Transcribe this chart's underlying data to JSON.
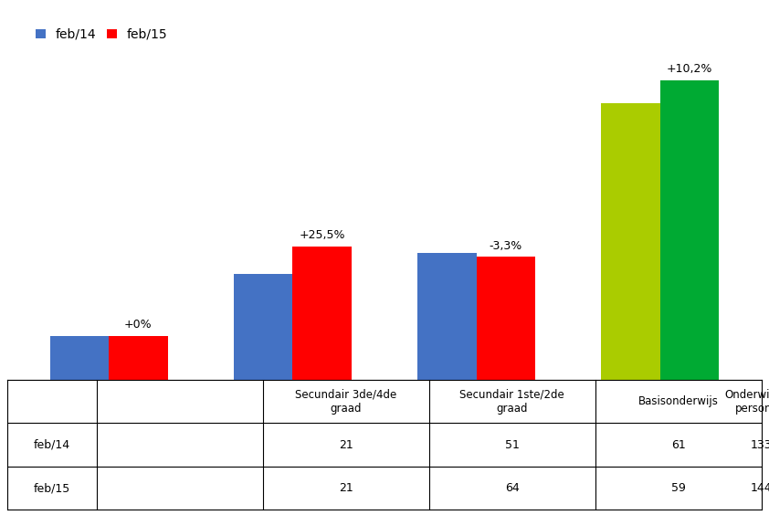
{
  "categories": [
    "Secundair 3de/4de\ngraad",
    "Secundair 1ste/2de\ngraad",
    "Basisonderwijs",
    "Onderwijzend\npersoneel"
  ],
  "feb14_values": [
    21,
    51,
    61,
    133
  ],
  "feb15_values": [
    21,
    64,
    59,
    144
  ],
  "feb14_bar_colors": [
    "#4472C4",
    "#4472C4",
    "#4472C4",
    "#AACC00"
  ],
  "feb15_bar_colors": [
    "#FF0000",
    "#FF0000",
    "#FF0000",
    "#00AA33"
  ],
  "change_labels": [
    "+0%",
    "+25,5%",
    "-3,3%",
    "+10,2%"
  ],
  "legend_feb14": "feb/14",
  "legend_feb15": "feb/15",
  "legend_color_feb14": "#4472C4",
  "legend_color_feb15": "#FF0000",
  "table_row1": [
    "21",
    "51",
    "61",
    "133"
  ],
  "table_row2": [
    "21",
    "64",
    "59",
    "144"
  ],
  "bar_width": 0.32,
  "figsize": [
    8.42,
    5.64
  ],
  "dpi": 100,
  "ylim": [
    0,
    175
  ]
}
